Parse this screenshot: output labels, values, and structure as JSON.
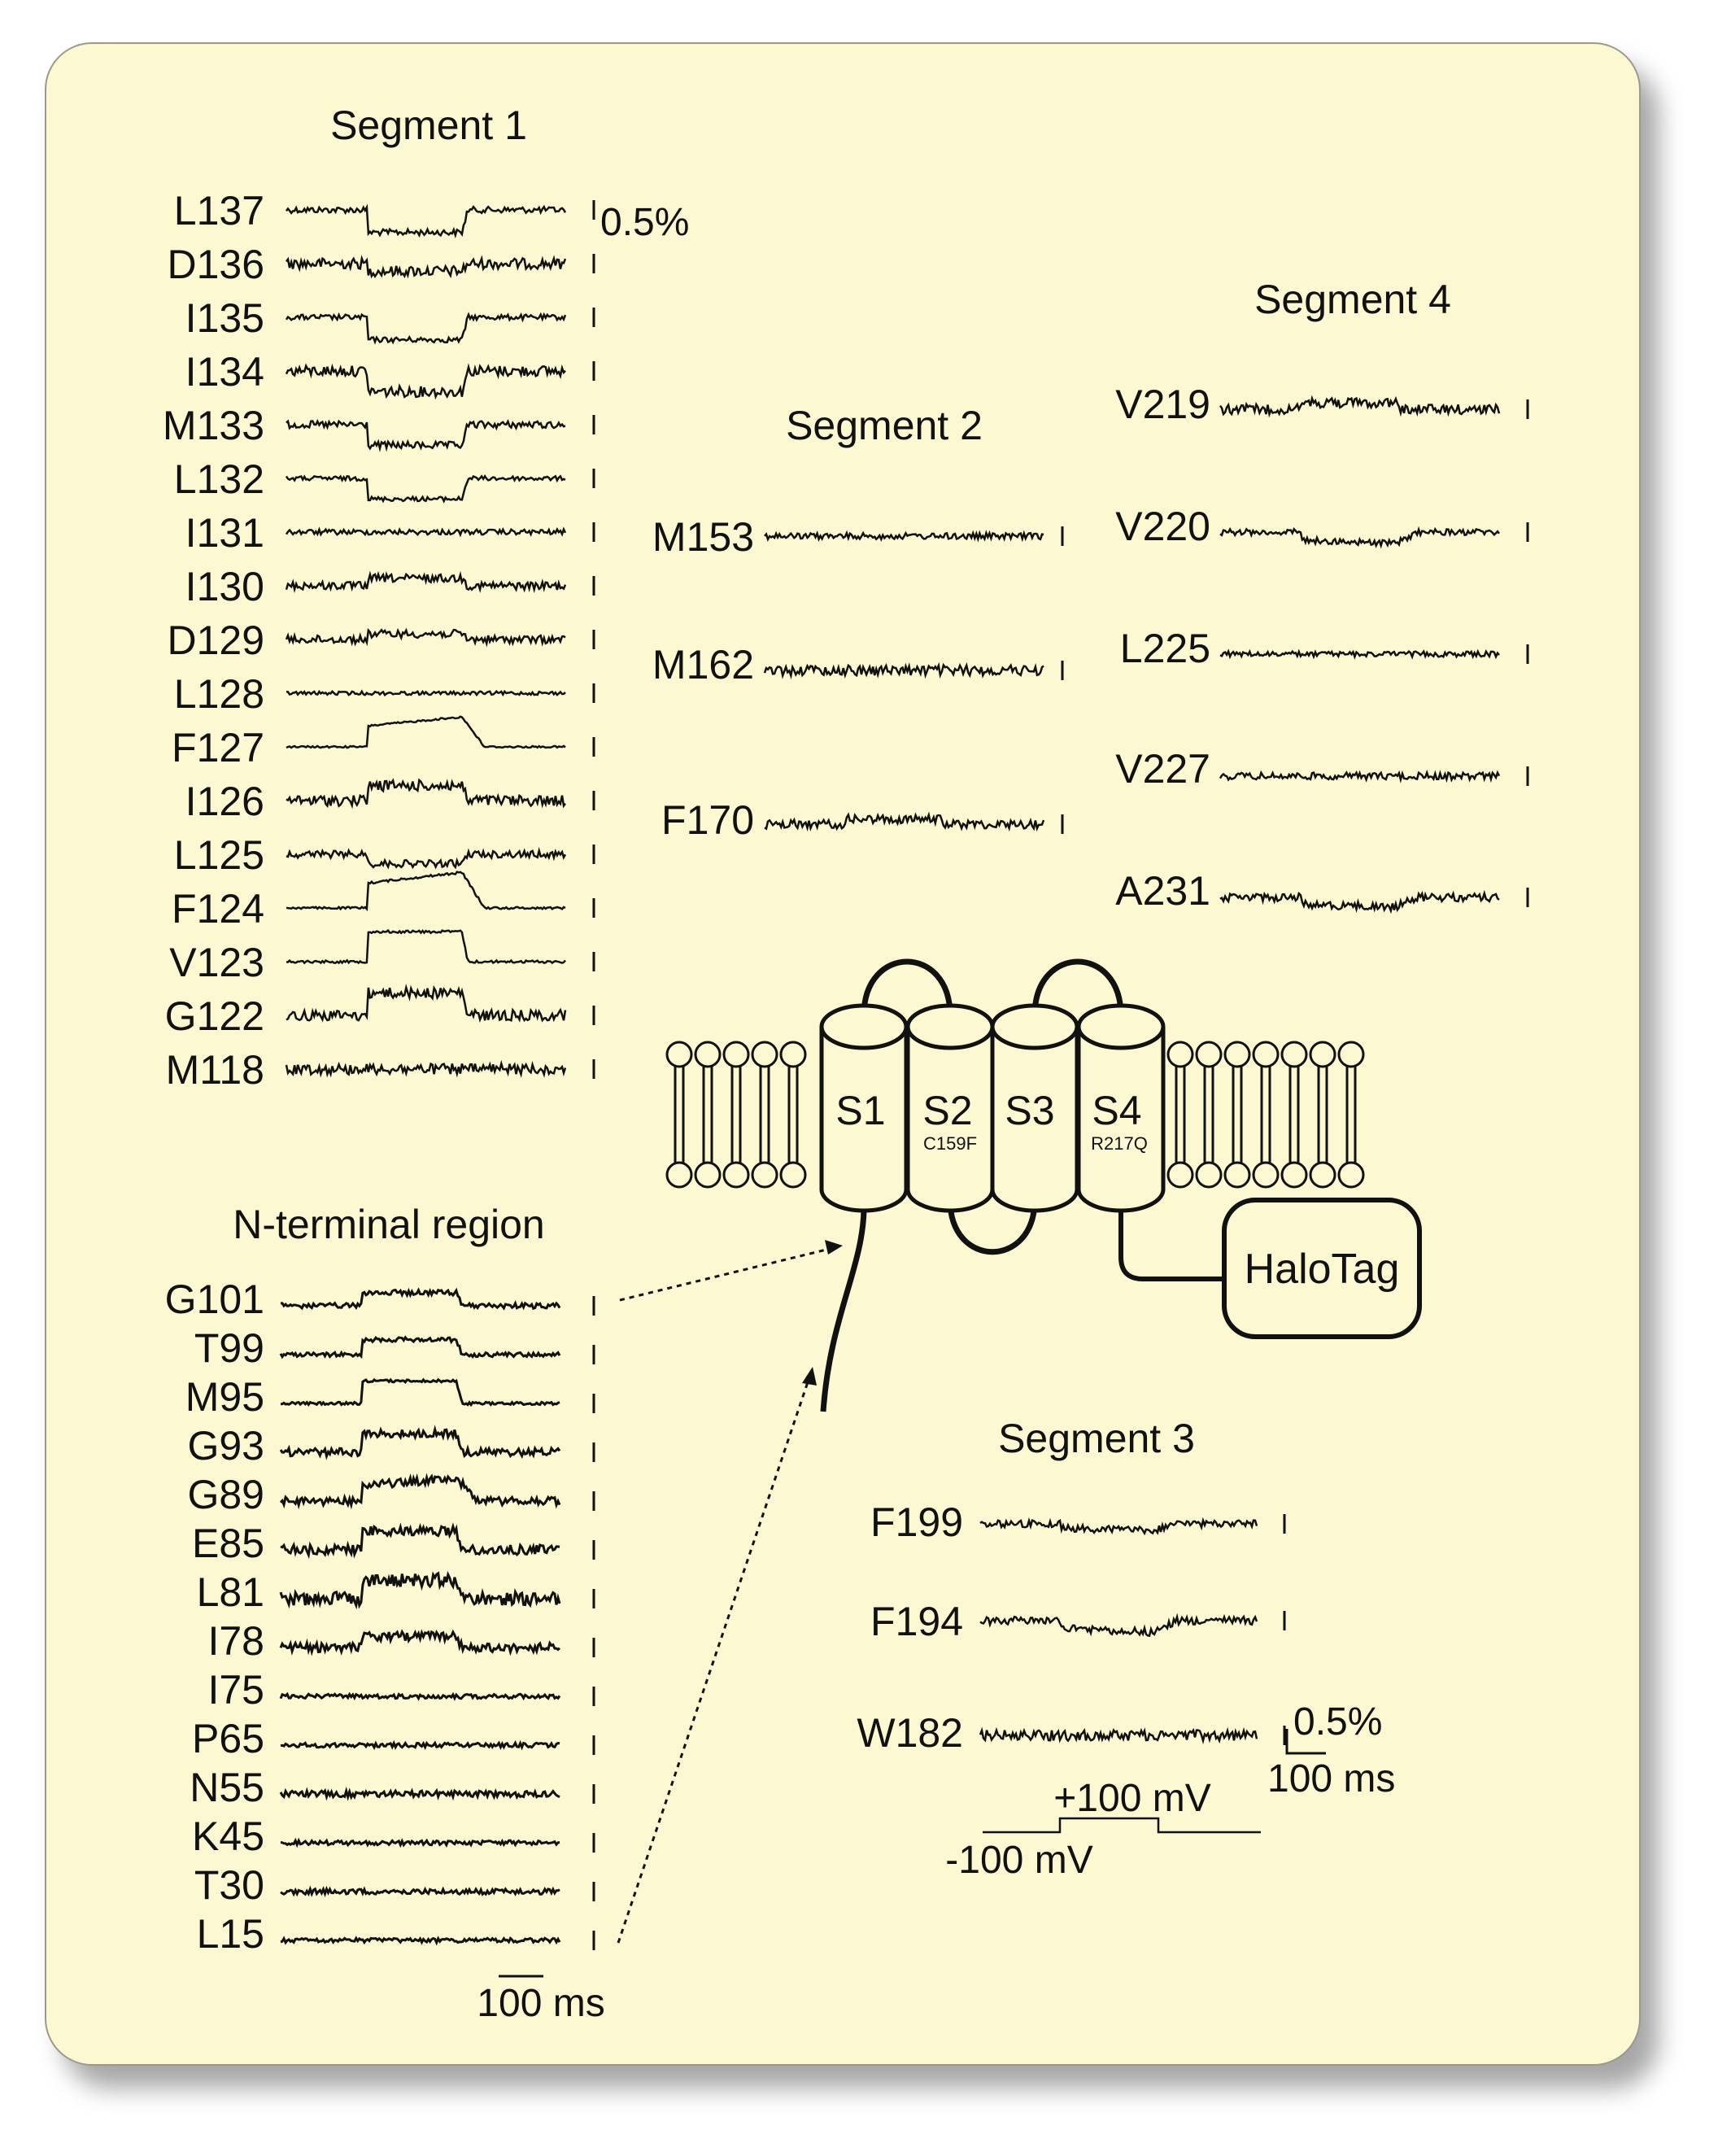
{
  "segments": [
    {
      "title": "Segment 1",
      "scale_label": "0.5%",
      "traces": [
        {
          "label": "L137",
          "shape": "down",
          "amp": 0.6,
          "noise": 0.35
        },
        {
          "label": "D136",
          "shape": "down",
          "amp": 0.2,
          "noise": 0.6
        },
        {
          "label": "I135",
          "shape": "down",
          "amp": 0.6,
          "noise": 0.3
        },
        {
          "label": "I134",
          "shape": "down",
          "amp": 0.55,
          "noise": 0.6
        },
        {
          "label": "M133",
          "shape": "down",
          "amp": 0.55,
          "noise": 0.4
        },
        {
          "label": "L132",
          "shape": "down",
          "amp": 0.55,
          "noise": 0.25
        },
        {
          "label": "I131",
          "shape": "flat",
          "amp": 0,
          "noise": 0.3
        },
        {
          "label": "I130",
          "shape": "up",
          "amp": 0.2,
          "noise": 0.45
        },
        {
          "label": "D129",
          "shape": "up",
          "amp": 0.15,
          "noise": 0.45
        },
        {
          "label": "L128",
          "shape": "flat",
          "amp": 0,
          "noise": 0.2
        },
        {
          "label": "F127",
          "shape": "upslope",
          "amp": 0.8,
          "noise": 0.1
        },
        {
          "label": "I126",
          "shape": "up",
          "amp": 0.4,
          "noise": 0.6
        },
        {
          "label": "L125",
          "shape": "down",
          "amp": 0.25,
          "noise": 0.4
        },
        {
          "label": "F124",
          "shape": "upslope",
          "amp": 0.95,
          "noise": 0.12
        },
        {
          "label": "V123",
          "shape": "up",
          "amp": 0.8,
          "noise": 0.15
        },
        {
          "label": "G122",
          "shape": "up",
          "amp": 0.6,
          "noise": 0.6
        },
        {
          "label": "M118",
          "shape": "flat",
          "amp": 0,
          "noise": 0.6
        }
      ]
    },
    {
      "title": "Segment 2",
      "traces": [
        {
          "label": "M153",
          "shape": "flat",
          "amp": 0,
          "noise": 0.35
        },
        {
          "label": "M162",
          "shape": "flat",
          "amp": 0,
          "noise": 0.6
        },
        {
          "label": "F170",
          "shape": "up",
          "amp": 0.15,
          "noise": 0.5
        }
      ]
    },
    {
      "title": "Segment 3",
      "traces": [
        {
          "label": "F199",
          "shape": "downslope",
          "amp": 0.2,
          "noise": 0.4
        },
        {
          "label": "F194",
          "shape": "downslope",
          "amp": 0.35,
          "noise": 0.45
        },
        {
          "label": "W182",
          "shape": "flat",
          "amp": 0,
          "noise": 0.6
        }
      ],
      "scale_amplitude": "0.5%",
      "scale_time": "100 ms",
      "protocol_high": "+100 mV",
      "protocol_low": "-100 mV"
    },
    {
      "title": "Segment 4",
      "traces": [
        {
          "label": "V219",
          "shape": "up",
          "amp": 0.2,
          "noise": 0.55
        },
        {
          "label": "V220",
          "shape": "downslope",
          "amp": 0.35,
          "noise": 0.35
        },
        {
          "label": "L225",
          "shape": "flat",
          "amp": 0,
          "noise": 0.3
        },
        {
          "label": "V227",
          "shape": "flat",
          "amp": 0,
          "noise": 0.4
        },
        {
          "label": "A231",
          "shape": "downslope",
          "amp": 0.3,
          "noise": 0.45
        }
      ]
    },
    {
      "title": "N-terminal region",
      "scale_time": "100 ms",
      "traces": [
        {
          "label": "G101",
          "shape": "up",
          "amp": 0.35,
          "noise": 0.3
        },
        {
          "label": "T99",
          "shape": "up",
          "amp": 0.4,
          "noise": 0.25
        },
        {
          "label": "M95",
          "shape": "up",
          "amp": 0.6,
          "noise": 0.15
        },
        {
          "label": "G93",
          "shape": "up",
          "amp": 0.5,
          "noise": 0.45
        },
        {
          "label": "G89",
          "shape": "upslope",
          "amp": 0.6,
          "noise": 0.45
        },
        {
          "label": "E85",
          "shape": "up",
          "amp": 0.5,
          "noise": 0.55
        },
        {
          "label": "L81",
          "shape": "up",
          "amp": 0.5,
          "noise": 0.75
        },
        {
          "label": "I78",
          "shape": "up",
          "amp": 0.3,
          "noise": 0.5
        },
        {
          "label": "I75",
          "shape": "flat",
          "amp": 0,
          "noise": 0.25
        },
        {
          "label": "P65",
          "shape": "flat",
          "amp": 0,
          "noise": 0.25
        },
        {
          "label": "N55",
          "shape": "flat",
          "amp": 0,
          "noise": 0.35
        },
        {
          "label": "K45",
          "shape": "flat",
          "amp": 0,
          "noise": 0.25
        },
        {
          "label": "T30",
          "shape": "flat",
          "amp": 0,
          "noise": 0.3
        },
        {
          "label": "L15",
          "shape": "flat",
          "amp": 0,
          "noise": 0.25
        }
      ]
    }
  ],
  "helices": [
    {
      "label": "S1",
      "mutation": ""
    },
    {
      "label": "S2",
      "mutation": "C159F"
    },
    {
      "label": "S3",
      "mutation": ""
    },
    {
      "label": "S4",
      "mutation": "R217Q"
    }
  ],
  "tag": "HaloTag",
  "colors": {
    "background": "#fbf8d2",
    "ink": "#111111"
  }
}
